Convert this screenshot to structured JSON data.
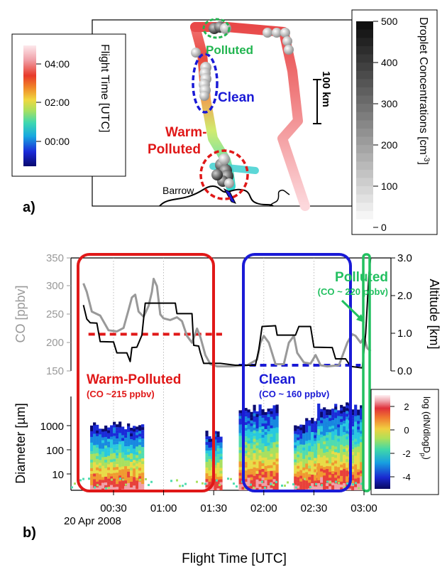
{
  "panel_a": {
    "label": "a)",
    "flight_time_colorbar": {
      "title": "Flight Time  [UTC]",
      "ticks": [
        "04:00",
        "02:00",
        "00:00"
      ]
    },
    "droplet_colorbar": {
      "title": "Droplet Concentrations [cm",
      "title_sup": "-3",
      "title_end": "]",
      "ticks": [
        "500",
        "400",
        "300",
        "200",
        "100",
        "0"
      ]
    },
    "scale_bar": "100 km",
    "labels": {
      "polluted": "Polluted",
      "clean": "Clean",
      "warm_polluted_1": "Warm-",
      "warm_polluted_2": "Polluted",
      "barrow": "Barrow"
    },
    "colors": {
      "polluted": "#22b550",
      "clean": "#1a1ad6",
      "warm": "#e01818"
    }
  },
  "panel_b": {
    "label": "b)",
    "x_ticks": [
      "00:30",
      "01:00",
      "01:30",
      "02:00",
      "02:30",
      "03:00"
    ],
    "date_label": "20 Apr 2008",
    "x_title": "Flight Time  [UTC]",
    "co_axis": {
      "title": "CO [ppbv]",
      "ticks": [
        "350",
        "300",
        "250",
        "200",
        "150"
      ],
      "color": "#999999"
    },
    "alt_axis": {
      "title": "Altitude [km]",
      "ticks": [
        "3.0",
        "2.0",
        "1.0",
        "0.0"
      ]
    },
    "diam_axis": {
      "title": "Diameter [µm]",
      "ticks": [
        "1000",
        "100",
        "10"
      ]
    },
    "size_colorbar": {
      "title_main": "log (dN/dlogD",
      "title_sub": "p",
      "title_end": ")",
      "ticks": [
        "2",
        "0",
        "-2",
        "-4"
      ]
    },
    "annotations": {
      "warm_polluted": "Warm-Polluted",
      "warm_polluted_co": "(CO ~215 ppbv)",
      "clean": "Clean",
      "clean_co": "(CO ~ 160 ppbv)",
      "polluted": "Polluted",
      "polluted_co": "(CO ~ 220 ppbv)"
    }
  },
  "chart_data": [
    {
      "type": "line",
      "xlabel": "Flight Time  [UTC]",
      "x_unit": "UTC time, 20 Apr 2008",
      "series": [
        {
          "name": "CO [ppbv]",
          "color": "#999999",
          "points": [
            [
              "00:12",
              305
            ],
            [
              "00:14",
              290
            ],
            [
              "00:17",
              255
            ],
            [
              "00:22",
              248
            ],
            [
              "00:27",
              222
            ],
            [
              "00:32",
              220
            ],
            [
              "00:36",
              226
            ],
            [
              "00:39",
              258
            ],
            [
              "00:41",
              280
            ],
            [
              "00:43",
              285
            ],
            [
              "00:45",
              255
            ],
            [
              "00:48",
              246
            ],
            [
              "00:51",
              265
            ],
            [
              "00:53",
              290
            ],
            [
              "00:54",
              313
            ],
            [
              "00:56",
              300
            ],
            [
              "00:58",
              250
            ],
            [
              "01:00",
              243
            ],
            [
              "01:04",
              240
            ],
            [
              "01:08",
              245
            ],
            [
              "01:11",
              238
            ],
            [
              "01:14",
              212
            ],
            [
              "01:17",
              200
            ],
            [
              "01:20",
              225
            ],
            [
              "01:22",
              210
            ],
            [
              "01:25",
              178
            ],
            [
              "01:28",
              162
            ],
            [
              "01:32",
              158
            ],
            [
              "01:40",
              158
            ],
            [
              "01:50",
              160
            ],
            [
              "01:56",
              170
            ],
            [
              "01:58",
              200
            ],
            [
              "02:00",
              212
            ],
            [
              "02:03",
              200
            ],
            [
              "02:07",
              162
            ],
            [
              "02:12",
              162
            ],
            [
              "02:15",
              200
            ],
            [
              "02:18",
              212
            ],
            [
              "02:20",
              182
            ],
            [
              "02:24",
              165
            ],
            [
              "02:28",
              163
            ],
            [
              "02:31",
              178
            ],
            [
              "02:34",
              160
            ],
            [
              "02:38",
              158
            ],
            [
              "02:45",
              160
            ],
            [
              "02:50",
              200
            ],
            [
              "02:53",
              215
            ],
            [
              "02:55",
              212
            ],
            [
              "02:58",
              200
            ],
            [
              "03:00",
              210
            ],
            [
              "03:02",
              190
            ],
            [
              "03:04",
              185
            ]
          ]
        },
        {
          "name": "Altitude [km]",
          "color": "#000000",
          "points": [
            [
              "00:12",
              1.75
            ],
            [
              "00:14",
              1.38
            ],
            [
              "00:16",
              1.28
            ],
            [
              "00:20",
              1.27
            ],
            [
              "00:22",
              0.78
            ],
            [
              "00:30",
              0.77
            ],
            [
              "00:32",
              0.48
            ],
            [
              "00:38",
              0.48
            ],
            [
              "00:40",
              0.25
            ],
            [
              "00:41",
              0.62
            ],
            [
              "00:44",
              0.63
            ],
            [
              "00:47",
              0.95
            ],
            [
              "00:49",
              1.8
            ],
            [
              "01:07",
              1.8
            ],
            [
              "01:08",
              1.52
            ],
            [
              "01:17",
              1.52
            ],
            [
              "01:18",
              0.68
            ],
            [
              "01:21",
              0.66
            ],
            [
              "01:22",
              0.48
            ],
            [
              "01:24",
              0.2
            ],
            [
              "01:34",
              0.2
            ],
            [
              "01:43",
              0.15
            ],
            [
              "01:55",
              0.15
            ],
            [
              "01:57",
              0.56
            ],
            [
              "01:59",
              1.18
            ],
            [
              "02:07",
              1.2
            ],
            [
              "02:08",
              0.95
            ],
            [
              "02:19",
              0.95
            ],
            [
              "02:21",
              1.18
            ],
            [
              "02:28",
              1.18
            ],
            [
              "02:30",
              0.63
            ],
            [
              "02:41",
              0.62
            ],
            [
              "02:43",
              0.32
            ],
            [
              "02:49",
              0.32
            ],
            [
              "02:52",
              0.12
            ],
            [
              "02:59",
              0.08
            ],
            [
              "03:01",
              1.0
            ],
            [
              "03:03",
              2.6
            ],
            [
              "03:04",
              3.0
            ]
          ]
        }
      ],
      "reference_lines": [
        {
          "label": "CO ~215 ppbv",
          "value": 215,
          "from": "00:15",
          "to": "01:35",
          "color": "#e01818"
        },
        {
          "label": "CO ~ 160 ppbv",
          "value": 160,
          "from": "01:45",
          "to": "02:58",
          "color": "#1a1ad6"
        }
      ],
      "ylim_co": [
        150,
        350
      ],
      "ylim_altitude": [
        0,
        3.0
      ]
    },
    {
      "type": "heatmap",
      "ylabel": "Diameter [µm]",
      "y_scale": "log",
      "colorbar_label": "log (dN/dlogDp)",
      "colorbar_range": [
        -5,
        3
      ]
    }
  ]
}
